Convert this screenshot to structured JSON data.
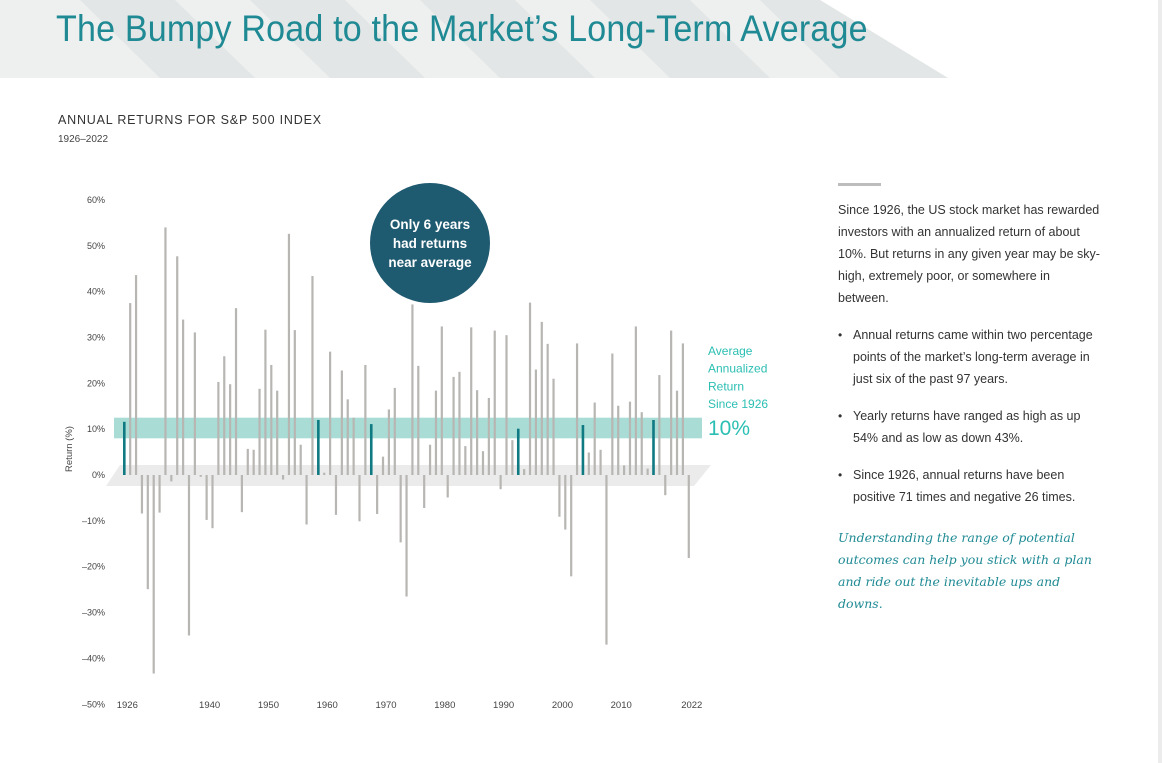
{
  "title": "The Bumpy Road to the Market’s Long-Term Average",
  "chart_heading": "ANNUAL RETURNS FOR S&P 500 INDEX",
  "chart_subheading": "1926–2022",
  "colors": {
    "title": "#1f8a94",
    "bar": "#b8b6b3",
    "bar_near_average": "#0f7a82",
    "average_band": "#a8dcd5",
    "average_label": "#2bbfb3",
    "bubble": "#1e5a70",
    "italic_text": "#1f8a94"
  },
  "chart_data": {
    "type": "bar",
    "title": "ANNUAL RETURNS FOR S&P 500 INDEX",
    "subtitle": "1926–2022",
    "xlabel": "",
    "ylabel": "Return (%)",
    "ylim": [
      -50,
      60
    ],
    "yticks": [
      60,
      50,
      40,
      30,
      20,
      10,
      0,
      -10,
      -20,
      -30,
      -40,
      -50
    ],
    "ytick_labels": [
      "60%",
      "50%",
      "40%",
      "30%",
      "20%",
      "10%",
      "0%",
      "–10%",
      "–20%",
      "–30%",
      "–40%",
      "–50%"
    ],
    "xtick_labels": [
      "1926",
      "1940",
      "1950",
      "1960",
      "1970",
      "1980",
      "1990",
      "2000",
      "2010",
      "2022"
    ],
    "grid": false,
    "years": [
      1926,
      1927,
      1928,
      1929,
      1930,
      1931,
      1932,
      1933,
      1934,
      1935,
      1936,
      1937,
      1938,
      1939,
      1940,
      1941,
      1942,
      1943,
      1944,
      1945,
      1946,
      1947,
      1948,
      1949,
      1950,
      1951,
      1952,
      1953,
      1954,
      1955,
      1956,
      1957,
      1958,
      1959,
      1960,
      1961,
      1962,
      1963,
      1964,
      1965,
      1966,
      1967,
      1968,
      1969,
      1970,
      1971,
      1972,
      1973,
      1974,
      1975,
      1976,
      1977,
      1978,
      1979,
      1980,
      1981,
      1982,
      1983,
      1984,
      1985,
      1986,
      1987,
      1988,
      1989,
      1990,
      1991,
      1992,
      1993,
      1994,
      1995,
      1996,
      1997,
      1998,
      1999,
      2000,
      2001,
      2002,
      2003,
      2004,
      2005,
      2006,
      2007,
      2008,
      2009,
      2010,
      2011,
      2012,
      2013,
      2014,
      2015,
      2016,
      2017,
      2018,
      2019,
      2020,
      2021,
      2022
    ],
    "values": [
      11.6,
      37.5,
      43.6,
      -8.4,
      -24.9,
      -43.3,
      -8.2,
      54.0,
      -1.4,
      47.7,
      33.9,
      -35.0,
      31.1,
      -0.4,
      -9.8,
      -11.6,
      20.3,
      25.9,
      19.8,
      36.4,
      -8.1,
      5.7,
      5.5,
      18.8,
      31.7,
      24.0,
      18.4,
      -1.0,
      52.6,
      31.6,
      6.6,
      -10.8,
      43.4,
      12.0,
      0.5,
      26.9,
      -8.7,
      22.8,
      16.5,
      12.5,
      -10.1,
      24.0,
      11.1,
      -8.5,
      4.0,
      14.3,
      19.0,
      -14.7,
      -26.5,
      37.2,
      23.8,
      -7.2,
      6.6,
      18.4,
      32.4,
      -4.9,
      21.4,
      22.5,
      6.3,
      32.2,
      18.5,
      5.2,
      16.8,
      31.5,
      -3.1,
      30.5,
      7.6,
      10.1,
      1.3,
      37.6,
      23.0,
      33.4,
      28.6,
      21.0,
      -9.1,
      -11.9,
      -22.1,
      28.7,
      10.9,
      4.9,
      15.8,
      5.5,
      -37.0,
      26.5,
      15.1,
      2.1,
      16.0,
      32.4,
      13.7,
      1.4,
      12.0,
      21.8,
      -4.4,
      31.5,
      18.4,
      28.7,
      -18.1
    ],
    "near_average_years": [
      1926,
      1959,
      1968,
      1993,
      2004,
      2016
    ],
    "average_return": 10,
    "average_label_lines": [
      "Average",
      "Annualized",
      "Return",
      "Since 1926"
    ],
    "average_value_label": "10%",
    "bubble_lines": [
      "Only 6 years",
      "had returns",
      "near average"
    ]
  },
  "sidebar": {
    "intro": "Since 1926, the US stock market has rewarded investors with an annualized return of about 10%. But returns in any given year may be sky-high, extremely poor, or somewhere in between.",
    "bullet_marker": "•",
    "bullets": [
      "Annual returns came within two percentage points of the market’s long-term average in just six of the past 97 years.",
      "Yearly returns have ranged as high as up 54% and as low as down 43%.",
      "Since 1926, annual returns have been positive 71 times and negative 26 times."
    ],
    "closing": "Understanding the range of potential outcomes can help you stick with a plan and ride out the inevitable ups and downs."
  }
}
